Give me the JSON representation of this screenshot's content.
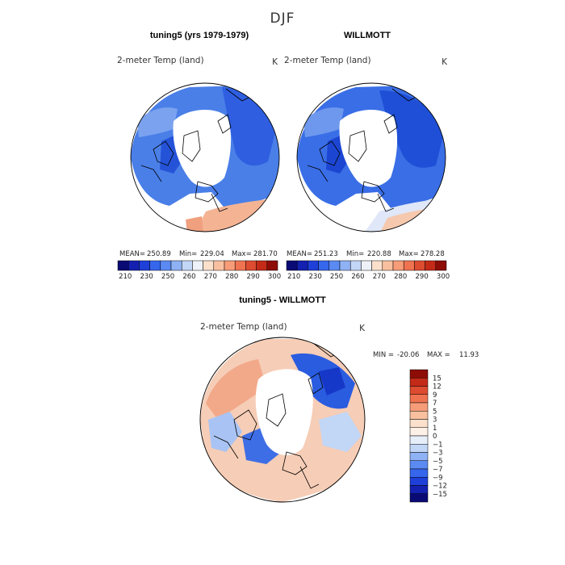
{
  "title": "DJF",
  "chart_data": [
    {
      "type": "heatmap",
      "title": "tuning5 (yrs 1979-1979)",
      "variable": "2-meter Temp (land)",
      "units": "K",
      "stats": {
        "mean_label": "MEAN=",
        "mean": "250.89",
        "min_label": "Min=",
        "min": "229.04",
        "max_label": "Max=",
        "max": "281.70"
      },
      "colorbar": {
        "ticks": [
          "210",
          "230",
          "250",
          "260",
          "270",
          "280",
          "290",
          "300"
        ],
        "colors": [
          "#0a0a75",
          "#1420b0",
          "#1e3fd8",
          "#3566ec",
          "#5a8af2",
          "#8fb2f5",
          "#c2d6f6",
          "#eef2f8",
          "#fbe0cc",
          "#f9c0a0",
          "#f79c78",
          "#ef7350",
          "#dd4c30",
          "#c42a18",
          "#8e0c06"
        ]
      }
    },
    {
      "type": "heatmap",
      "title": "WILLMOTT",
      "variable": "2-meter Temp (land)",
      "units": "K",
      "stats": {
        "mean_label": "MEAN=",
        "mean": "251.23",
        "min_label": "Min=",
        "min": "220.88",
        "max_label": "Max=",
        "max": "278.28"
      },
      "colorbar": {
        "ticks": [
          "210",
          "230",
          "250",
          "260",
          "270",
          "280",
          "290",
          "300"
        ],
        "colors": [
          "#0a0a75",
          "#1420b0",
          "#1e3fd8",
          "#3566ec",
          "#5a8af2",
          "#8fb2f5",
          "#c2d6f6",
          "#eef2f8",
          "#fbe0cc",
          "#f9c0a0",
          "#f79c78",
          "#ef7350",
          "#dd4c30",
          "#c42a18",
          "#8e0c06"
        ]
      }
    },
    {
      "type": "heatmap",
      "title": "tuning5 - WILLMOTT",
      "variable": "2-meter Temp (land)",
      "units": "K",
      "stats": {
        "min_label": "MIN =",
        "min": "-20.06",
        "max_label": "MAX =",
        "max": "11.93"
      },
      "colorbar": {
        "ticks": [
          "15",
          "12",
          "9",
          "7",
          "5",
          "3",
          "1",
          "0",
          "−1",
          "−3",
          "−5",
          "−7",
          "−9",
          "−12",
          "−15"
        ],
        "colors": [
          "#8e0c06",
          "#c42a18",
          "#dd4c30",
          "#ef7350",
          "#f79c78",
          "#f9c0a0",
          "#fbe0cc",
          "#fdf0e6",
          "#e6eefa",
          "#c2d6f6",
          "#8fb2f5",
          "#5a8af2",
          "#3566ec",
          "#1e3fd8",
          "#1420b0",
          "#0a0a75"
        ]
      }
    }
  ],
  "colors": {
    "land_mean": "#4a7fe8",
    "ice": "#ffffff",
    "warm": "#f4b494",
    "border": "#000000"
  }
}
